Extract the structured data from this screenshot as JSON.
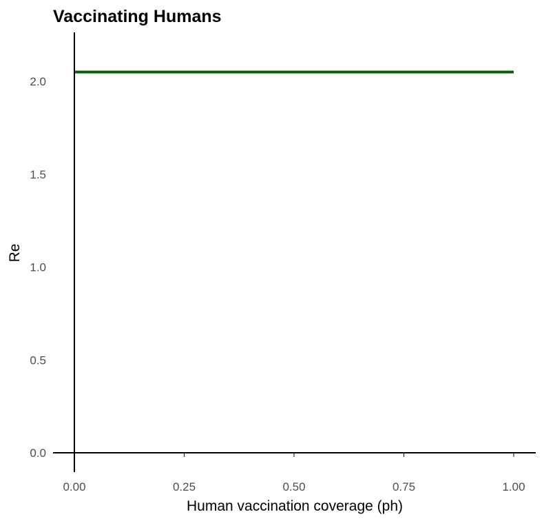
{
  "chart_data": {
    "type": "line",
    "title": "Vaccinating Humans",
    "xlabel": "Human vaccination coverage (ph)",
    "ylabel": "Re",
    "xlim": [
      0,
      1
    ],
    "ylim": [
      0,
      2.2
    ],
    "x_ticks": [
      0,
      0.25,
      0.5,
      0.75,
      1
    ],
    "x_tick_labels": [
      "0.00",
      "0.25",
      "0.50",
      "0.75",
      "1.00"
    ],
    "y_ticks": [
      0,
      0.5,
      1,
      1.5,
      2
    ],
    "y_tick_labels": [
      "0.0",
      "0.5",
      "1.0",
      "1.5",
      "2.0"
    ],
    "grid": false,
    "legend": "none",
    "series": [
      {
        "color": "#0b5c0b",
        "x": [
          0,
          1
        ],
        "y": [
          2.05,
          2.05
        ]
      }
    ]
  }
}
